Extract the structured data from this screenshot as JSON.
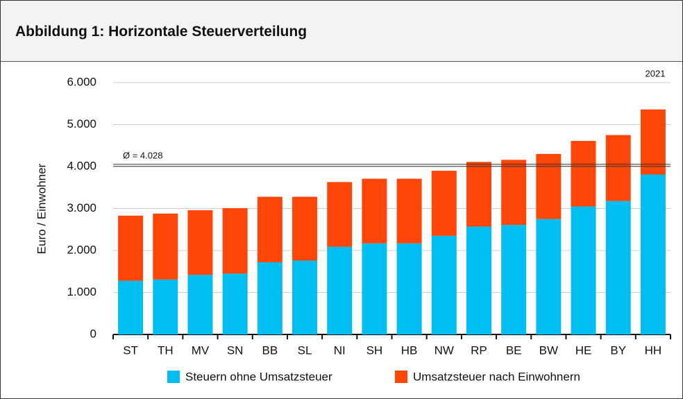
{
  "chart_data": {
    "type": "stacked_bar",
    "title": "Abbildung 1: Horizontale Steuerverteilung",
    "annotation": "2021",
    "ylabel": "Euro / Einwohner",
    "categories": [
      "ST",
      "TH",
      "MV",
      "SN",
      "BB",
      "SL",
      "NI",
      "SH",
      "HB",
      "NW",
      "RP",
      "BE",
      "BW",
      "HE",
      "BY",
      "HH"
    ],
    "series": [
      {
        "name": "Steuern ohne Umsatzsteuer",
        "color": "#00bdf2",
        "values": [
          1280,
          1310,
          1420,
          1450,
          1720,
          1760,
          2090,
          2170,
          2170,
          2350,
          2570,
          2610,
          2750,
          3050,
          3180,
          3810
        ]
      },
      {
        "name": "Umsatzsteuer nach Einwohnern",
        "color": "#fe4608",
        "values": [
          1550,
          1570,
          1540,
          1560,
          1560,
          1520,
          1540,
          1540,
          1540,
          1550,
          1540,
          1550,
          1550,
          1560,
          1570,
          1550
        ]
      }
    ],
    "average": {
      "value": 4028,
      "label": "Ø = 4.028"
    },
    "ylim": [
      0,
      6000
    ],
    "yticks": [
      0,
      {
        "value": 1000,
        "label": "1.000"
      },
      {
        "value": 2000,
        "label": "2.000"
      },
      {
        "value": 3000,
        "label": "3.000"
      },
      {
        "value": 4000,
        "label": "4.000"
      },
      {
        "value": 5000,
        "label": "5.000"
      },
      {
        "value": 6000,
        "label": "6.000"
      }
    ],
    "grid": true
  }
}
